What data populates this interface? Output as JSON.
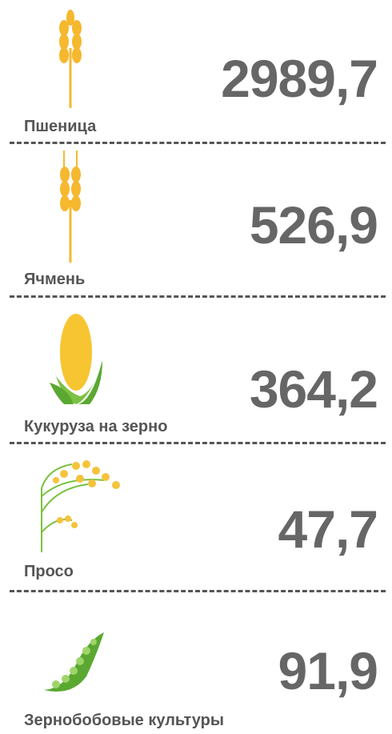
{
  "items": [
    {
      "label": "Пшеница",
      "value": "2989,7"
    },
    {
      "label": "Ячмень",
      "value": "526,9"
    },
    {
      "label": "Кукуруза на зерно",
      "value": "364,2"
    },
    {
      "label": "Просо",
      "value": "47,7"
    },
    {
      "label": "Зернобобовые культуры",
      "value": "91,9"
    }
  ]
}
